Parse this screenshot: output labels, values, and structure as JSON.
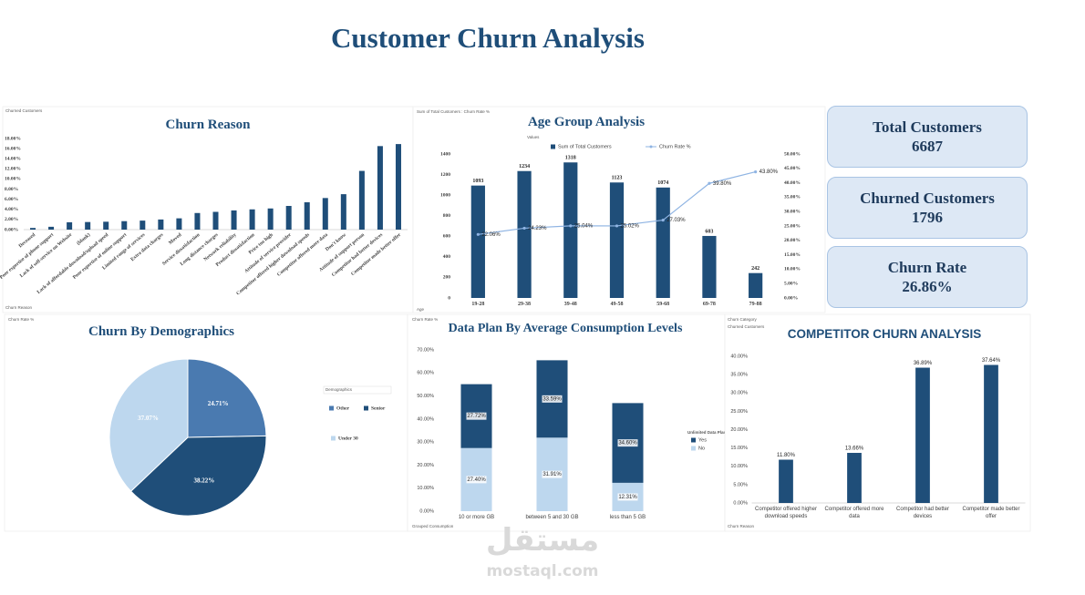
{
  "title": "Customer Churn Analysis",
  "kpis": [
    {
      "label": "Total Customers",
      "value": 6687
    },
    {
      "label": "Churned Customers",
      "value": 1796
    },
    {
      "label": "Churn Rate",
      "value": "26.86%"
    }
  ],
  "watermark": {
    "arabic": "مستقل",
    "latin": "mostaql.com"
  },
  "chart_data": [
    {
      "type": "bar",
      "title": "Churn Reason",
      "fields": [
        "Churned Customers",
        "Churn Reason"
      ],
      "categories": [
        "Deceased",
        "Poor expertise of phone support",
        "Lack of self-service on Website",
        "(blank)",
        "Lack of affordable download/upload speed",
        "Poor expertise of online support",
        "Limited range of services",
        "Extra data charges",
        "Moved",
        "Service dissatisfaction",
        "Long distance charges",
        "Network reliability",
        "Product dissatisfaction",
        "Price too high",
        "Attitude of service provider",
        "Competitor offered higher download speeds",
        "Competitor offered more data",
        "Don't know",
        "Attitude of support person",
        "Competitor had better devices",
        "Competitor made better offer"
      ],
      "values": [
        0.33,
        0.56,
        1.45,
        1.5,
        1.56,
        1.67,
        1.78,
        2.0,
        2.23,
        3.28,
        3.51,
        3.79,
        4.0,
        4.18,
        4.68,
        5.4,
        6.24,
        7.0,
        11.6,
        16.5,
        16.9
      ],
      "color": "#1f4e79",
      "ylim": [
        0,
        18
      ],
      "yticks": [
        {
          "value": 0,
          "label": "0.00%"
        },
        {
          "value": 2,
          "label": "2.00%"
        },
        {
          "value": 4,
          "label": "4.00%"
        },
        {
          "value": 6,
          "label": "6.00%"
        },
        {
          "value": 8,
          "label": "8.00%"
        },
        {
          "value": 10,
          "label": "10.00%"
        },
        {
          "value": 12,
          "label": "12.00%"
        },
        {
          "value": 14,
          "label": "14.00%"
        },
        {
          "value": 16,
          "label": "16.00%"
        },
        {
          "value": 18,
          "label": "18.00%"
        }
      ],
      "xtick_rotation": -40,
      "grid": false
    },
    {
      "type": "combo",
      "title": "Age Group Analysis",
      "fields": [
        "Sum of Total Customers : Churn Rate %",
        "Values",
        "Age"
      ],
      "categories": [
        "19-28",
        "29-38",
        "39-48",
        "49-58",
        "59-68",
        "69-78",
        "79-88"
      ],
      "series": [
        {
          "name": "Sum of Total Customers",
          "color": "#1f4e79",
          "values": [
            1093,
            1234,
            1318,
            1123,
            1074,
            603,
            242
          ]
        },
        {
          "name": "Churn Rate %",
          "color": "#8fb4e3",
          "axis": "y2",
          "values": [
            22.06,
            24.23,
            25.04,
            25.02,
            27.03,
            39.8,
            43.8
          ],
          "value_labels": [
            "22.06%",
            "24.23%",
            "25.04%",
            "25.02%",
            "27.03%",
            "39.80%",
            "43.80%"
          ]
        }
      ],
      "ylim": [
        0,
        1400
      ],
      "yticks": [
        0,
        200,
        400,
        600,
        800,
        1000,
        1200,
        1400
      ],
      "y2lim": [
        0,
        50
      ],
      "y2ticks": [
        {
          "value": 0,
          "label": "0.00%"
        },
        {
          "value": 5,
          "label": "5.00%"
        },
        {
          "value": 10,
          "label": "10.00%"
        },
        {
          "value": 15,
          "label": "15.00%"
        },
        {
          "value": 20,
          "label": "20.00%"
        },
        {
          "value": 25,
          "label": "25.00%"
        },
        {
          "value": 30,
          "label": "30.00%"
        },
        {
          "value": 35,
          "label": "35.00%"
        },
        {
          "value": 40,
          "label": "40.00%"
        },
        {
          "value": 45,
          "label": "45.00%"
        },
        {
          "value": 50,
          "label": "50.00%"
        }
      ],
      "grid": false
    },
    {
      "type": "pie",
      "title": "Churn By Demographics",
      "fields": [
        "Churn Rate %"
      ],
      "legend_title": "Demographics",
      "categories": [
        "Other",
        "Senior",
        "Under 30"
      ],
      "values": [
        24.71,
        38.22,
        37.07
      ],
      "value_labels": [
        "24.71%",
        "38.22%",
        "37.07%"
      ],
      "colors": [
        "#4a7ab0",
        "#1f4e79",
        "#bdd7ee"
      ]
    },
    {
      "type": "stacked_bar",
      "title": "Data Plan By Average Consumption Levels",
      "fields": [
        "Churn Rate %",
        "Grouped Consumption"
      ],
      "legend_title": "Unlimited Data Plan",
      "categories": [
        "10 or more GB",
        "between 5 and 30 GB",
        "less than 5 GB"
      ],
      "series": [
        {
          "name": "No",
          "color": "#bdd7ee",
          "values": [
            27.4,
            31.91,
            12.31
          ],
          "value_labels": [
            "27.40%",
            "31.91%",
            "12.31%"
          ]
        },
        {
          "name": "Yes",
          "color": "#1f4e79",
          "values": [
            27.72,
            33.59,
            34.6
          ],
          "value_labels": [
            "27.72%",
            "33.59%",
            "34.60%"
          ]
        }
      ],
      "ylim": [
        0,
        70
      ],
      "yticks": [
        {
          "value": 0,
          "label": "0.00%"
        },
        {
          "value": 10,
          "label": "10.00%"
        },
        {
          "value": 20,
          "label": "20.00%"
        },
        {
          "value": 30,
          "label": "30.00%"
        },
        {
          "value": 40,
          "label": "40.00%"
        },
        {
          "value": 50,
          "label": "50.00%"
        },
        {
          "value": 60,
          "label": "60.00%"
        },
        {
          "value": 70,
          "label": "70.00%"
        }
      ],
      "grid": false
    },
    {
      "type": "bar",
      "title": "COMPETITOR CHURN ANALYSIS",
      "fields": [
        "Churn Category",
        "Churned Customers",
        "Churn Reason"
      ],
      "categories": [
        "Competitor offered higher download speeds",
        "Competitor offered more data",
        "Competitor had better devices",
        "Competitor made better offer"
      ],
      "values": [
        11.8,
        13.66,
        36.89,
        37.64
      ],
      "value_labels": [
        "11.80%",
        "13.66%",
        "36.89%",
        "37.64%"
      ],
      "color": "#1f4e79",
      "ylim": [
        0,
        40
      ],
      "yticks": [
        {
          "value": 0,
          "label": "0.00%"
        },
        {
          "value": 5,
          "label": "5.00%"
        },
        {
          "value": 10,
          "label": "10.00%"
        },
        {
          "value": 15,
          "label": "15.00%"
        },
        {
          "value": 20,
          "label": "20.00%"
        },
        {
          "value": 25,
          "label": "25.00%"
        },
        {
          "value": 30,
          "label": "30.00%"
        },
        {
          "value": 35,
          "label": "35.00%"
        },
        {
          "value": 40,
          "label": "40.00%"
        }
      ],
      "grid": false
    }
  ]
}
